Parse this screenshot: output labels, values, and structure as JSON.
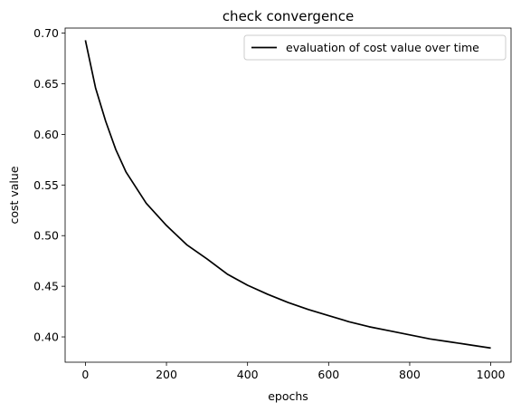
{
  "chart_data": {
    "type": "line",
    "title": "check convergence",
    "xlabel": "epochs",
    "ylabel": "cost value",
    "xlim": [
      -50,
      1050
    ],
    "ylim": [
      0.375,
      0.705
    ],
    "xticks": [
      0,
      200,
      400,
      600,
      800,
      1000
    ],
    "yticks": [
      0.4,
      0.45,
      0.5,
      0.55,
      0.6,
      0.65,
      0.7
    ],
    "xtick_labels": [
      "0",
      "200",
      "400",
      "600",
      "800",
      "1000"
    ],
    "ytick_labels": [
      "0.40",
      "0.45",
      "0.50",
      "0.55",
      "0.60",
      "0.65",
      "0.70"
    ],
    "grid": false,
    "legend_position": "top-right",
    "series": [
      {
        "name": "evaluation of cost value over time",
        "color": "#000000",
        "x": [
          0,
          25,
          50,
          75,
          100,
          150,
          200,
          250,
          300,
          350,
          400,
          450,
          500,
          550,
          600,
          650,
          700,
          750,
          800,
          850,
          900,
          950,
          1000
        ],
        "values": [
          0.693,
          0.646,
          0.613,
          0.585,
          0.563,
          0.532,
          0.51,
          0.491,
          0.477,
          0.462,
          0.451,
          0.442,
          0.434,
          0.427,
          0.421,
          0.415,
          0.41,
          0.406,
          0.402,
          0.398,
          0.395,
          0.392,
          0.389
        ]
      }
    ]
  }
}
